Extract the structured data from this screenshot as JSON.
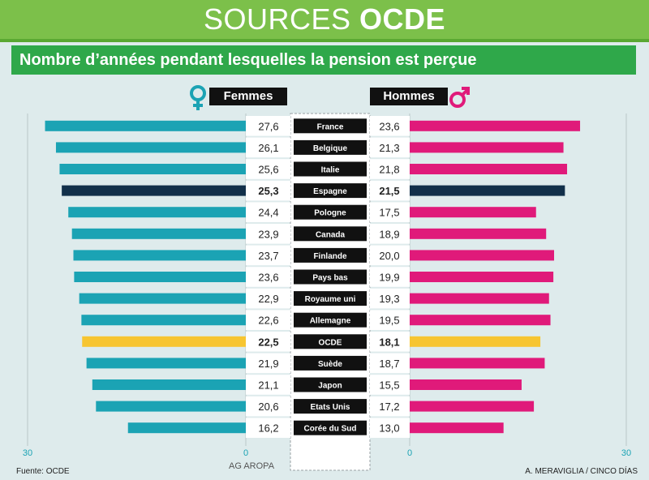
{
  "header": {
    "title_light": "SOURCES",
    "title_bold": "OCDE",
    "subtitle": "Nombre d’années pendant lesquelles la pension est perçue"
  },
  "legend": {
    "women": "Femmes",
    "men": "Hommes",
    "women_icon": "female-symbol-icon",
    "men_icon": "male-symbol-icon"
  },
  "footer": {
    "source": "Fuente: OCDE",
    "agency": "AG AROPA",
    "credit": "A. MERAVIGLIA / CINCO DÍAS"
  },
  "colors": {
    "teal": "#1ba3b4",
    "magenta": "#e01a7a",
    "navy": "#12304a",
    "yellow": "#f7c531",
    "green": "#7cc04a",
    "subtitle_green": "#2fa84a"
  },
  "chart_data": {
    "type": "bar",
    "orientation": "horizontal",
    "layout": "butterfly",
    "categories": [
      "France",
      "Belgique",
      "Italie",
      "Espagne",
      "Pologne",
      "Canada",
      "Finlande",
      "Pays bas",
      "Royaume uni",
      "Allemagne",
      "OCDE",
      "Suède",
      "Japon",
      "Etats Unis",
      "Corée du Sud"
    ],
    "series": [
      {
        "name": "Femmes",
        "side": "left",
        "values": [
          27.6,
          26.1,
          25.6,
          25.3,
          24.4,
          23.9,
          23.7,
          23.6,
          22.9,
          22.6,
          22.5,
          21.9,
          21.1,
          20.6,
          16.2
        ],
        "labels": [
          "27,6",
          "26,1",
          "25,6",
          "25,3",
          "24,4",
          "23,9",
          "23,7",
          "23,6",
          "22,9",
          "22,6",
          "22,5",
          "21,9",
          "21,1",
          "20,6",
          "16,2"
        ]
      },
      {
        "name": "Hommes",
        "side": "right",
        "values": [
          23.6,
          21.3,
          21.8,
          21.5,
          17.5,
          18.9,
          20.0,
          19.9,
          19.3,
          19.5,
          18.1,
          18.7,
          15.5,
          17.2,
          13.0
        ],
        "labels": [
          "23,6",
          "21,3",
          "21,8",
          "21,5",
          "17,5",
          "18,9",
          "20,0",
          "19,9",
          "19,3",
          "19,5",
          "18,1",
          "18,7",
          "15,5",
          "17,2",
          "13,0"
        ]
      }
    ],
    "highlight": {
      "Espagne": "navy",
      "OCDE": "yellow"
    },
    "axis": {
      "min": 0,
      "max": 30,
      "ticks": [
        "30",
        "0",
        "0",
        "30"
      ]
    }
  }
}
